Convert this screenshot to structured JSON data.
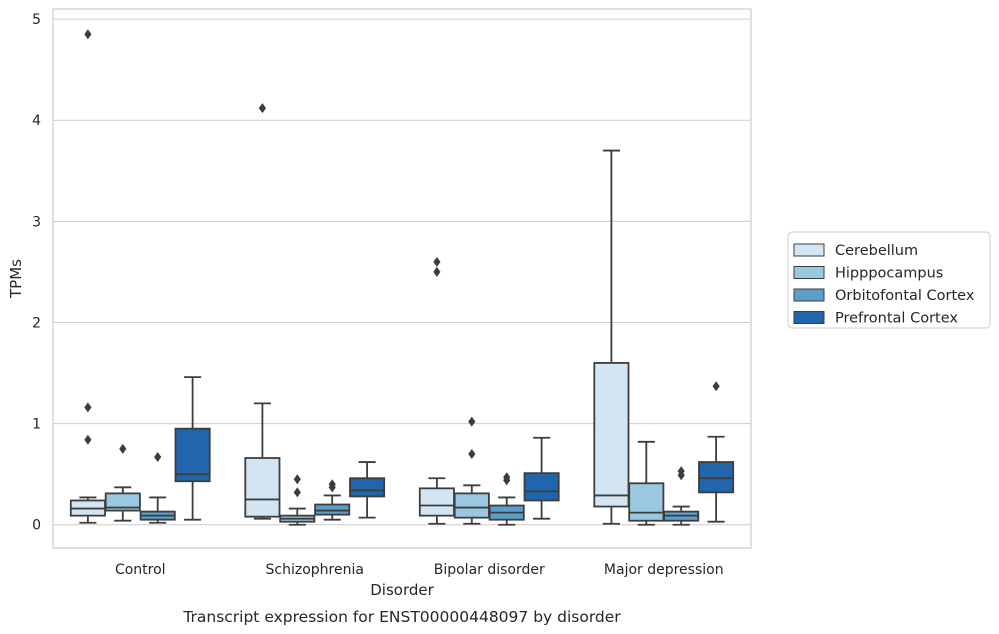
{
  "chart_data": {
    "type": "boxplot",
    "title": "",
    "caption": "Transcript expression for ENST00000448097 by disorder",
    "xlabel": "Disorder",
    "ylabel": "TPMs",
    "ylim": [
      -0.23,
      5.1
    ],
    "yticks": [
      0,
      1,
      2,
      3,
      4,
      5
    ],
    "grid": "horizontal",
    "legend_position": "right",
    "categories": [
      "Control",
      "Schizophrenia",
      "Bipolar disorder",
      "Major depression"
    ],
    "series": [
      {
        "name": "Cerebellum",
        "color": "#d3e4f3",
        "boxes": [
          {
            "whisker_low": 0.02,
            "q1": 0.09,
            "median": 0.16,
            "q3": 0.24,
            "whisker_high": 0.27,
            "outliers": [
              4.85,
              1.16,
              0.84
            ]
          },
          {
            "whisker_low": 0.06,
            "q1": 0.08,
            "median": 0.25,
            "q3": 0.66,
            "whisker_high": 1.2,
            "outliers": [
              4.12
            ]
          },
          {
            "whisker_low": 0.01,
            "q1": 0.09,
            "median": 0.19,
            "q3": 0.36,
            "whisker_high": 0.46,
            "outliers": [
              2.6,
              2.5
            ]
          },
          {
            "whisker_low": 0.01,
            "q1": 0.18,
            "median": 0.29,
            "q3": 1.6,
            "whisker_high": 3.7,
            "outliers": []
          }
        ]
      },
      {
        "name": "Hipppocampus",
        "color": "#9ac8e0",
        "boxes": [
          {
            "whisker_low": 0.04,
            "q1": 0.14,
            "median": 0.17,
            "q3": 0.31,
            "whisker_high": 0.37,
            "outliers": [
              0.75
            ]
          },
          {
            "whisker_low": 0.0,
            "q1": 0.03,
            "median": 0.06,
            "q3": 0.09,
            "whisker_high": 0.16,
            "outliers": [
              0.45,
              0.32
            ]
          },
          {
            "whisker_low": 0.01,
            "q1": 0.07,
            "median": 0.17,
            "q3": 0.31,
            "whisker_high": 0.39,
            "outliers": [
              1.02,
              0.7
            ]
          },
          {
            "whisker_low": 0.0,
            "q1": 0.04,
            "median": 0.12,
            "q3": 0.41,
            "whisker_high": 0.82,
            "outliers": []
          }
        ]
      },
      {
        "name": "Orbitofontal Cortex",
        "color": "#5a9ec9",
        "boxes": [
          {
            "whisker_low": 0.02,
            "q1": 0.05,
            "median": 0.09,
            "q3": 0.13,
            "whisker_high": 0.27,
            "outliers": [
              0.67
            ]
          },
          {
            "whisker_low": 0.05,
            "q1": 0.1,
            "median": 0.14,
            "q3": 0.2,
            "whisker_high": 0.29,
            "outliers": [
              0.4,
              0.37
            ]
          },
          {
            "whisker_low": 0.0,
            "q1": 0.05,
            "median": 0.12,
            "q3": 0.19,
            "whisker_high": 0.27,
            "outliers": [
              0.47,
              0.44
            ]
          },
          {
            "whisker_low": 0.0,
            "q1": 0.04,
            "median": 0.09,
            "q3": 0.13,
            "whisker_high": 0.18,
            "outliers": [
              0.53,
              0.49
            ]
          }
        ]
      },
      {
        "name": "Prefrontal Cortex",
        "color": "#2166ac",
        "boxes": [
          {
            "whisker_low": 0.05,
            "q1": 0.43,
            "median": 0.5,
            "q3": 0.95,
            "whisker_high": 1.46,
            "outliers": []
          },
          {
            "whisker_low": 0.07,
            "q1": 0.28,
            "median": 0.34,
            "q3": 0.46,
            "whisker_high": 0.62,
            "outliers": []
          },
          {
            "whisker_low": 0.06,
            "q1": 0.24,
            "median": 0.33,
            "q3": 0.51,
            "whisker_high": 0.86,
            "outliers": []
          },
          {
            "whisker_low": 0.03,
            "q1": 0.32,
            "median": 0.46,
            "q3": 0.62,
            "whisker_high": 0.87,
            "outliers": [
              1.37
            ]
          }
        ]
      }
    ]
  }
}
